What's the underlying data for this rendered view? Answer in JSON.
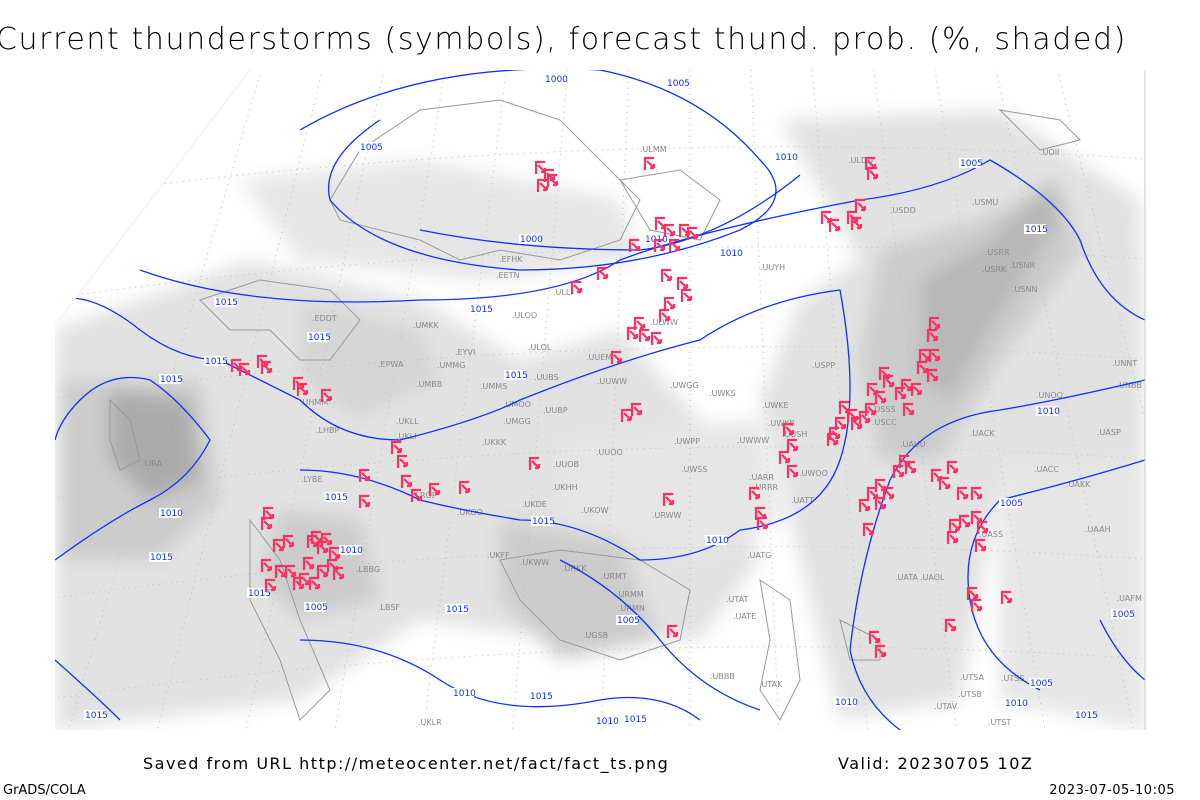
{
  "title": "Current thunderstorms (symbols), forecast thund. prob. (%, shaded)",
  "footer": {
    "saved": "Saved from URL http://meteocenter.net/fact/fact_ts.png",
    "valid": "Valid: 20230705 10Z",
    "software": "GrADS/COLA",
    "timestamp": "2023-07-05-10:05"
  },
  "colors": {
    "isobar": "#1030ff",
    "thunderstorm_symbol": "#ff2f5f",
    "coastline": "#999999",
    "shade_light": "#e2e2e2",
    "shade_mid": "#cccccc",
    "shade_dark": "#aaaaaa"
  },
  "legend": {
    "symbol_icon": "thunderstorm-icon",
    "shading": "thunderstorm probability (%)"
  },
  "isobar_labels": [
    "1000",
    "1005",
    "1005",
    "1000",
    "1005",
    "1010",
    "1010",
    "1010",
    "1015",
    "1015",
    "1015",
    "1015",
    "1015",
    "1015",
    "1015",
    "1015",
    "1015",
    "1010",
    "1015",
    "1015",
    "1010",
    "1005",
    "1010",
    "1005",
    "1010",
    "1015",
    "1005",
    "1010",
    "1015",
    "1010",
    "1015",
    "1010",
    "1010",
    "1005",
    "1005",
    "1015",
    "1015"
  ],
  "stations": [
    "ULMM",
    "UUYH",
    "ULDD",
    "USDD",
    "USMU",
    "UOII",
    "USRR",
    "USRK",
    "USNR",
    "USNN",
    "EFHK",
    "EETN",
    "ULLI",
    "ULOO",
    "EDDT",
    "UMKK",
    "EYVI",
    "ULOL",
    "EPWA",
    "UMMG",
    "UUEM",
    "UMMS",
    "UUBS",
    "UMOO",
    "UMBB",
    "UUWW",
    "UWGG",
    "UMGG",
    "UUBP",
    "UKLL",
    "LHBP",
    "UKLI",
    "UKKK",
    "UWPP",
    "UWKS",
    "UWKE",
    "UWKB",
    "USPP",
    "USSS",
    "UUOB",
    "UUOO",
    "UWWW",
    "UWSS",
    "URWW",
    "UKHH",
    "UKDE",
    "UKOW",
    "URRR",
    "URKK",
    "URMT",
    "URMM",
    "URMN",
    "UGSB",
    "UBBB",
    "UTAK",
    "UTAT",
    "UATE",
    "UATG",
    "UARR",
    "UATT",
    "UWOO",
    "USCC",
    "UAUU",
    "UACK",
    "UACC",
    "UAKK",
    "UASP",
    "UNOO",
    "UNBB",
    "UNNT",
    "UASS",
    "UAAH",
    "UAFM",
    "UTSA",
    "UTSB",
    "UTAV",
    "UTSS",
    "UTST",
    "LBSF",
    "LBBG",
    "LYBE",
    "LROP",
    "UKFF",
    "UKWW",
    "LIRA",
    "UKOO",
    "UKLR",
    "ULWW",
    "UHMM",
    "UUSH",
    "UATA",
    "UAOL"
  ]
}
